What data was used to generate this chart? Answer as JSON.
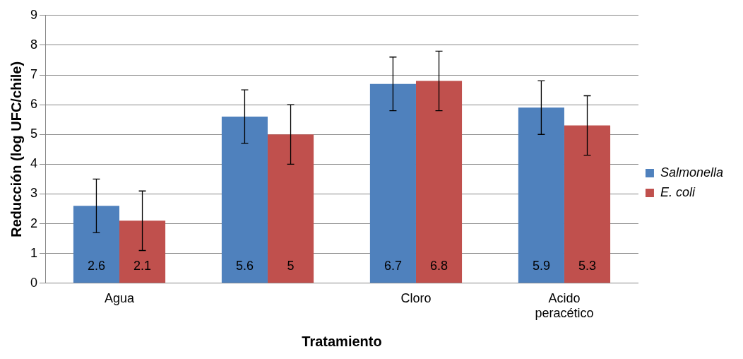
{
  "chart_data": {
    "type": "bar",
    "xlabel": "Tratamiento",
    "ylabel": "Reducción (log UFC/chile)",
    "categories": [
      "Agua",
      null,
      "Cloro",
      "Acido peracético"
    ],
    "series": [
      {
        "name": "Salmonella",
        "color": "#4f81bd",
        "values": [
          2.6,
          5.6,
          6.7,
          5.9
        ],
        "errors": [
          0.9,
          0.9,
          0.9,
          0.9
        ]
      },
      {
        "name": "E. coli",
        "color": "#c0504d",
        "values": [
          2.1,
          5,
          6.8,
          5.3
        ],
        "errors": [
          1,
          1,
          1,
          1
        ]
      }
    ],
    "ylim": [
      0,
      9
    ],
    "yticks": [
      0,
      1,
      2,
      3,
      4,
      5,
      6,
      7,
      8,
      9
    ],
    "grid": "y",
    "legend": "right",
    "data_labels": true
  }
}
